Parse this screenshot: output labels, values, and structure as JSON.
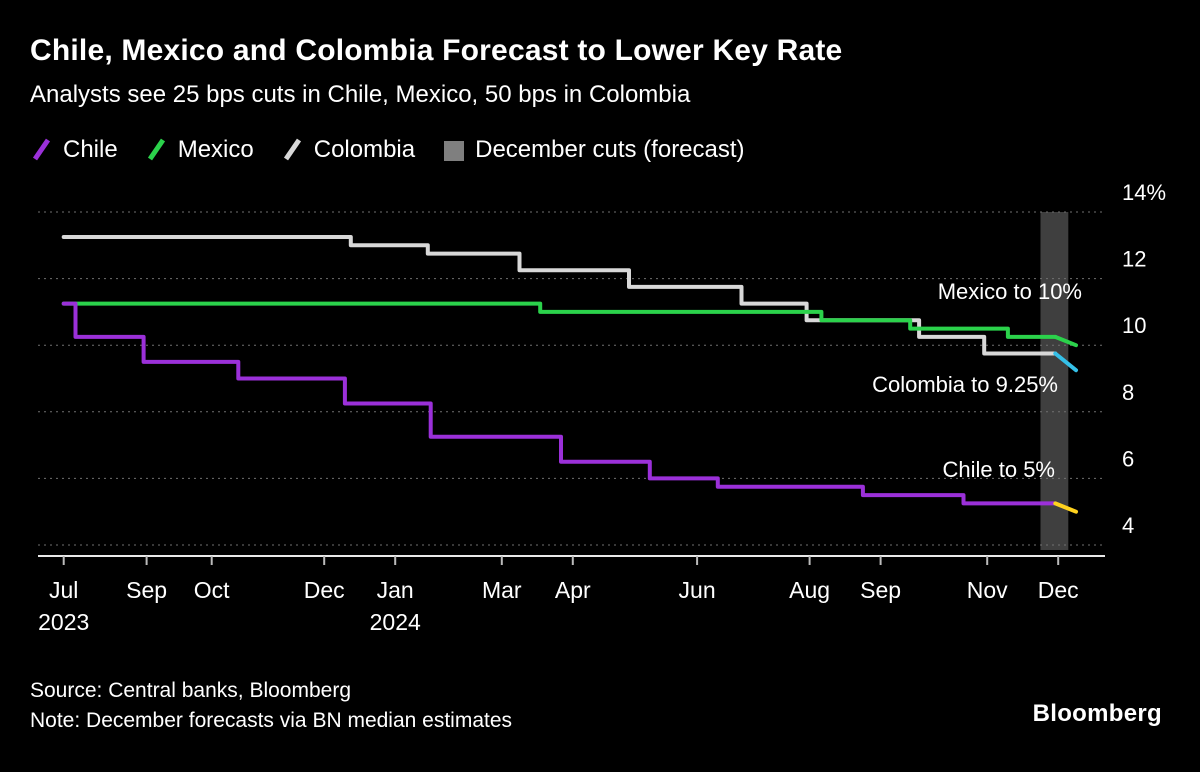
{
  "header": {
    "title": "Chile, Mexico and Colombia Forecast to Lower Key Rate",
    "subtitle": "Analysts see 25 bps cuts in Chile, Mexico, 50 bps in Colombia"
  },
  "legend": {
    "items": [
      {
        "label": "Chile",
        "color": "#9b30d9",
        "swatch": "line"
      },
      {
        "label": "Mexico",
        "color": "#2bd24b",
        "swatch": "line"
      },
      {
        "label": "Colombia",
        "color": "#d8d8d8",
        "swatch": "line"
      },
      {
        "label": "December cuts (forecast)",
        "color": "#7f7f7f",
        "swatch": "square"
      }
    ]
  },
  "chart_data": {
    "type": "line",
    "title": "Chile, Mexico and Colombia Forecast to Lower Key Rate",
    "subtitle": "Analysts see 25 bps cuts in Chile, Mexico, 50 bps in Colombia",
    "x_axis": {
      "unit": "months from Jul 2023",
      "range": [
        0,
        18
      ],
      "ticks": [
        {
          "m": 0.4,
          "label": "Jul",
          "sublabel": "2023"
        },
        {
          "m": 1.8,
          "label": "Sep"
        },
        {
          "m": 2.9,
          "label": "Oct"
        },
        {
          "m": 4.8,
          "label": "Dec"
        },
        {
          "m": 6.0,
          "label": "Jan",
          "sublabel": "2024"
        },
        {
          "m": 7.8,
          "label": "Mar"
        },
        {
          "m": 9.0,
          "label": "Apr"
        },
        {
          "m": 11.1,
          "label": "Jun"
        },
        {
          "m": 13.0,
          "label": "Aug"
        },
        {
          "m": 14.2,
          "label": "Sep"
        },
        {
          "m": 16.0,
          "label": "Nov"
        },
        {
          "m": 17.2,
          "label": "Dec"
        }
      ]
    },
    "y_axis": {
      "unit": "%",
      "range": [
        4,
        14
      ],
      "grid": "dotted",
      "ticks": [
        {
          "v": 14,
          "label": "14%"
        },
        {
          "v": 12,
          "label": "12"
        },
        {
          "v": 10,
          "label": "10"
        },
        {
          "v": 8,
          "label": "8"
        },
        {
          "v": 6,
          "label": "6"
        },
        {
          "v": 4,
          "label": "4"
        }
      ]
    },
    "forecast_band": {
      "from_m": 16.9,
      "to_m": 17.37,
      "color": "#3f3f3f",
      "label": "December cuts (forecast)"
    },
    "series": [
      {
        "name": "Chile",
        "color": "#9b30d9",
        "points": [
          [
            0.4,
            11.25
          ],
          [
            0.6,
            10.25
          ],
          [
            1.75,
            9.5
          ],
          [
            3.35,
            9.0
          ],
          [
            5.15,
            8.25
          ],
          [
            6.6,
            7.25
          ],
          [
            8.8,
            6.5
          ],
          [
            10.3,
            6.0
          ],
          [
            11.45,
            5.75
          ],
          [
            13.9,
            5.5
          ],
          [
            15.6,
            5.25
          ],
          [
            17.15,
            5.25
          ]
        ],
        "forecast": {
          "color": "#ffd21e",
          "rate_target": 5.0,
          "points": [
            [
              17.15,
              5.25
            ],
            [
              17.5,
              5.0
            ]
          ]
        }
      },
      {
        "name": "Mexico",
        "color": "#2bd24b",
        "points": [
          [
            0.4,
            11.25
          ],
          [
            8.45,
            11.0
          ],
          [
            13.2,
            10.75
          ],
          [
            14.7,
            10.5
          ],
          [
            16.35,
            10.25
          ],
          [
            17.15,
            10.25
          ]
        ],
        "forecast": {
          "color": "#2bd24b",
          "rate_target": 10.0,
          "points": [
            [
              17.15,
              10.25
            ],
            [
              17.5,
              10.0
            ]
          ]
        }
      },
      {
        "name": "Colombia",
        "color": "#d8d8d8",
        "points": [
          [
            0.4,
            13.25
          ],
          [
            5.25,
            13.0
          ],
          [
            6.55,
            12.75
          ],
          [
            8.1,
            12.25
          ],
          [
            9.95,
            11.75
          ],
          [
            11.85,
            11.25
          ],
          [
            12.95,
            10.75
          ],
          [
            14.85,
            10.25
          ],
          [
            15.95,
            9.75
          ],
          [
            17.15,
            9.75
          ]
        ],
        "forecast": {
          "color": "#35c0e8",
          "rate_target": 9.25,
          "points": [
            [
              17.15,
              9.75
            ],
            [
              17.5,
              9.25
            ]
          ]
        }
      }
    ],
    "annotations": [
      {
        "label": "Mexico to 10%"
      },
      {
        "label": "Colombia to 9.25%"
      },
      {
        "label": "Chile to 5%"
      }
    ]
  },
  "footer": {
    "source": "Source: Central banks, Bloomberg",
    "note": "Note: December forecasts via BN median estimates",
    "logo": "Bloomberg"
  }
}
